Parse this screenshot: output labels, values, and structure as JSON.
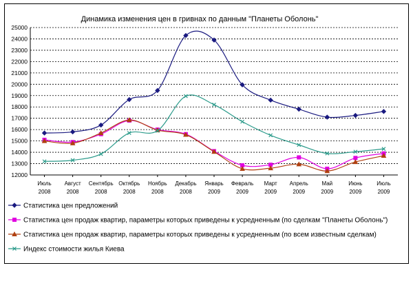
{
  "chart_data": {
    "type": "line",
    "title": "Динамика изменения цен в гривнах по данным \"Планеты Оболонь\"",
    "categories": [
      [
        "Июль",
        "2008"
      ],
      [
        "Август",
        "2008"
      ],
      [
        "Сентябрь",
        "2008"
      ],
      [
        "Октябрь",
        "2008"
      ],
      [
        "Ноябрь",
        "2008"
      ],
      [
        "Декабрь",
        "2008"
      ],
      [
        "Январь",
        "2009"
      ],
      [
        "Февраль",
        "2009"
      ],
      [
        "Март",
        "2009"
      ],
      [
        "Апрель",
        "2009"
      ],
      [
        "Май",
        "2009"
      ],
      [
        "Июнь",
        "2009"
      ],
      [
        "Июль",
        "2009"
      ]
    ],
    "ylim": [
      12000,
      25000
    ],
    "yticks": [
      12000,
      13000,
      14000,
      15000,
      16000,
      17000,
      18000,
      19000,
      20000,
      21000,
      22000,
      23000,
      24000,
      25000
    ],
    "grid": "horizontal-dashed",
    "legend_position": "bottom",
    "series": [
      {
        "name": "Статистика цен предложений",
        "color": "#1a1a80",
        "marker": "diamond",
        "values": [
          15700,
          15800,
          16400,
          18650,
          19450,
          24300,
          23900,
          19950,
          18600,
          17800,
          17100,
          17250,
          17600
        ]
      },
      {
        "name": "Статистика цен продаж квартир, параметры которых приведены к усредненным (по сделкам \"Планеты Оболонь\")",
        "color": "#e000e0",
        "marker": "square",
        "values": [
          15100,
          14900,
          15600,
          16800,
          16000,
          15600,
          14100,
          12850,
          12900,
          13550,
          12550,
          13500,
          13900
        ]
      },
      {
        "name": "Статистика цен продаж квартир, параметры которых приведены к усредненным (по всем известным сделкам)",
        "color": "#b04010",
        "marker": "triangle",
        "values": [
          15000,
          14800,
          15700,
          16850,
          15950,
          15550,
          14050,
          12550,
          12600,
          12950,
          12350,
          13150,
          13700
        ]
      },
      {
        "name": "Индекс стоимости жилья Киева",
        "color": "#2a9a8a",
        "marker": "x",
        "values": [
          13200,
          13300,
          13850,
          15700,
          15900,
          18950,
          18200,
          16700,
          15500,
          14650,
          13900,
          14050,
          14300
        ]
      }
    ]
  }
}
